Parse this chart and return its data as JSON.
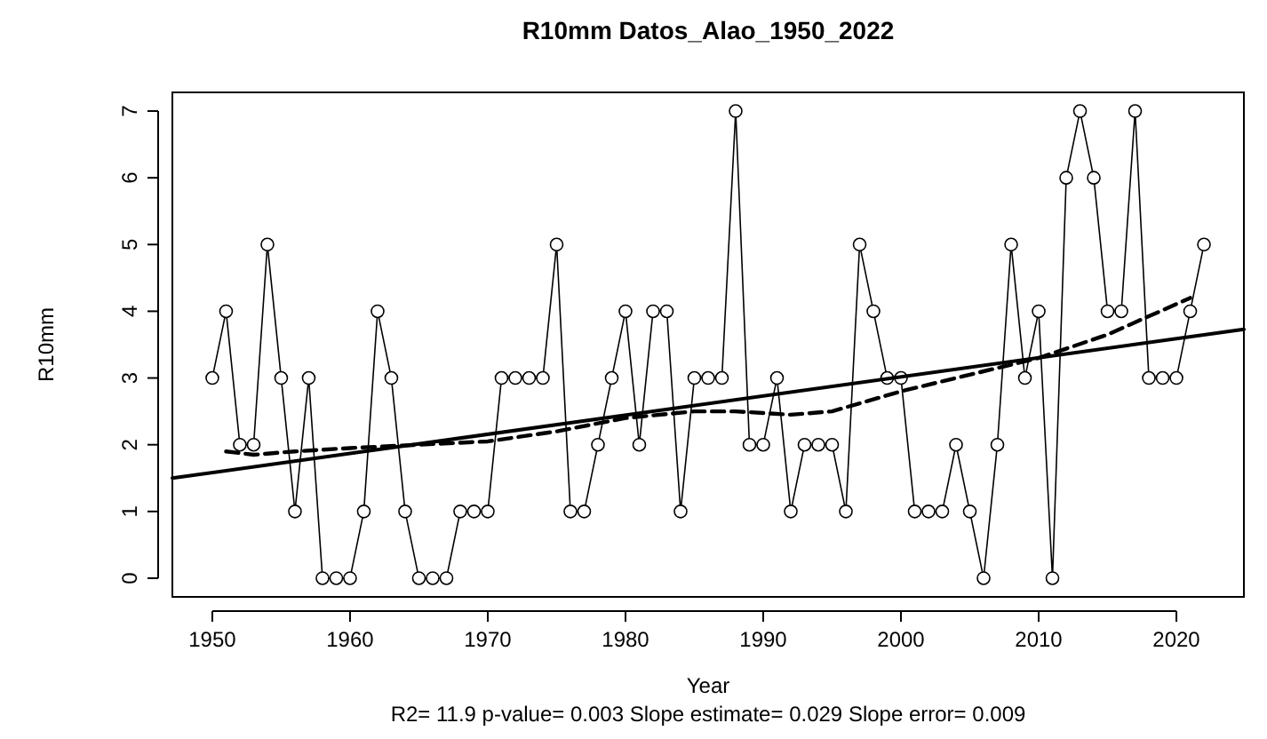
{
  "chart_data": {
    "type": "line",
    "title": "R10mm   Datos_Alao_1950_2022",
    "xlabel": "Year",
    "ylabel": "R10mm",
    "annotations": [
      "R2= 11.9  p-value= 0.003  Slope estimate= 0.029  Slope error= 0.009"
    ],
    "xlim": [
      1947.1,
      2024.9
    ],
    "xticks": [
      1950,
      1960,
      1970,
      1980,
      1990,
      2000,
      2010,
      2020
    ],
    "ylim": [
      -0.28,
      7.28
    ],
    "yticks": [
      0,
      1,
      2,
      3,
      4,
      5,
      6,
      7
    ],
    "grid": false,
    "series": [
      {
        "color": "#000000",
        "marker": "circle",
        "line_style": "solid",
        "x": [
          1950,
          1951,
          1952,
          1953,
          1954,
          1955,
          1956,
          1957,
          1958,
          1959,
          1960,
          1961,
          1962,
          1963,
          1964,
          1965,
          1966,
          1967,
          1968,
          1969,
          1970,
          1971,
          1972,
          1973,
          1974,
          1975,
          1976,
          1977,
          1978,
          1979,
          1980,
          1981,
          1982,
          1983,
          1984,
          1985,
          1986,
          1987,
          1988,
          1989,
          1990,
          1991,
          1992,
          1993,
          1994,
          1995,
          1996,
          1997,
          1998,
          1999,
          2000,
          2001,
          2002,
          2003,
          2004,
          2005,
          2006,
          2007,
          2008,
          2009,
          2010,
          2011,
          2012,
          2013,
          2014,
          2015,
          2016,
          2017,
          2018,
          2019,
          2020,
          2021,
          2022
        ],
        "values": [
          3,
          4,
          2,
          2,
          5,
          3,
          1,
          3,
          0,
          0,
          0,
          1,
          4,
          3,
          1,
          0,
          0,
          0,
          1,
          1,
          1,
          3,
          3,
          3,
          3,
          5,
          1,
          1,
          2,
          3,
          4,
          2,
          4,
          4,
          1,
          3,
          3,
          3,
          7,
          2,
          2,
          3,
          1,
          2,
          2,
          2,
          1,
          5,
          4,
          3,
          3,
          1,
          1,
          1,
          2,
          1,
          0,
          2,
          5,
          3,
          4,
          0,
          6,
          7,
          6,
          4,
          4,
          7,
          3,
          3,
          3,
          4,
          5
        ]
      },
      {
        "color": "#000000",
        "marker": "none",
        "line_style": "solid",
        "x": [
          1947.1,
          2024.9
        ],
        "values": [
          1.5,
          3.73
        ]
      },
      {
        "color": "#000000",
        "marker": "none",
        "line_style": "dashed",
        "x": [
          1951,
          1953,
          1956,
          1960,
          1965,
          1970,
          1975,
          1980,
          1985,
          1988,
          1992,
          1995,
          2000,
          2005,
          2010,
          2015,
          2021
        ],
        "values": [
          1.9,
          1.85,
          1.9,
          1.95,
          2.0,
          2.05,
          2.2,
          2.4,
          2.5,
          2.5,
          2.45,
          2.5,
          2.8,
          3.05,
          3.3,
          3.65,
          4.2
        ]
      }
    ]
  }
}
